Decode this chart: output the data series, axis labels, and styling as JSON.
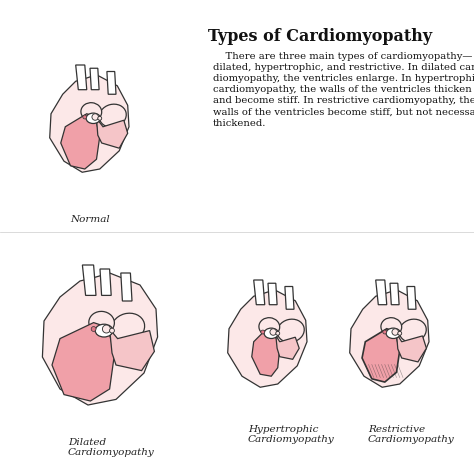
{
  "title": "Types of Cardiomyopathy",
  "title_fontsize": 11.5,
  "body_text": "    There are three main types of cardiomyopathy—\ndilated, hypertrophic, and restrictive. In dilated car-\ndiomyopathy, the ventricles enlarge. In hypertrophic\ncardiomyopathy, the walls of the ventricles thicken\nand become stiff. In restrictive cardiomyopathy, the\nwalls of the ventricles become stiff, but not necessarily\nthickened.",
  "body_fontsize": 7.2,
  "label_normal": "Normal",
  "label_dilated": "Dilated\nCardiomyopathy",
  "label_hypertrophic": "Hypertrophic\nCardiomyopathy",
  "label_restrictive": "Restrictive\nCardiomyopathy",
  "background_color": "#ffffff",
  "heart_outline": "#333333",
  "fill_very_light": "#fce8e8",
  "fill_light": "#f5c5c8",
  "fill_medium": "#f0a0a8",
  "fill_dark": "#e07888",
  "label_fontsize": 7.5,
  "fig_width": 4.74,
  "fig_height": 4.74,
  "dpi": 100
}
